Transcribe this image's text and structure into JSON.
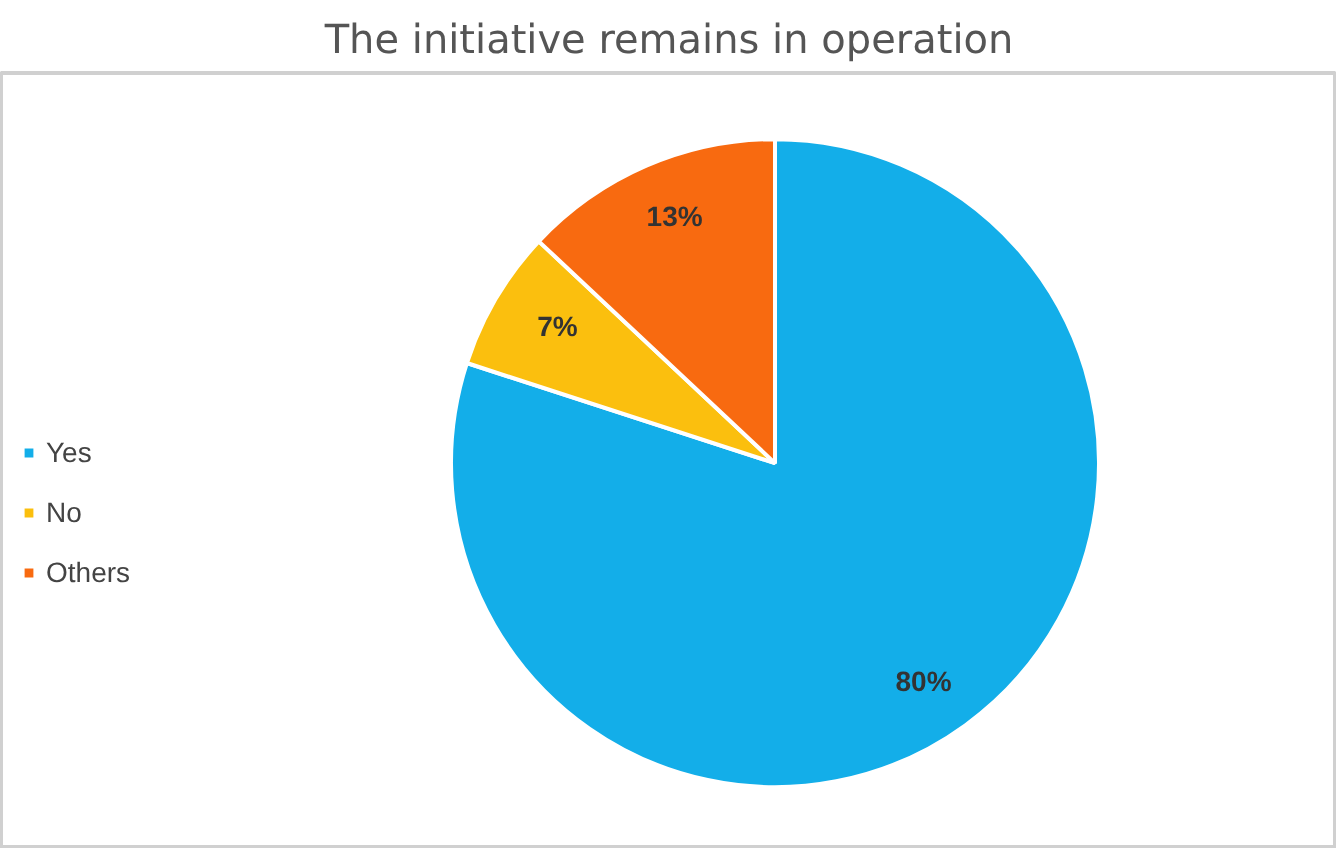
{
  "chart_data": {
    "type": "pie",
    "title": "The initiative remains in operation",
    "categories": [
      "Yes",
      "No",
      "Others"
    ],
    "values": [
      80,
      7,
      13
    ],
    "colors": [
      "#13aee9",
      "#fbbf0e",
      "#f86a10"
    ],
    "value_labels": [
      "80%",
      "7%",
      "13%"
    ],
    "legend": "left"
  }
}
